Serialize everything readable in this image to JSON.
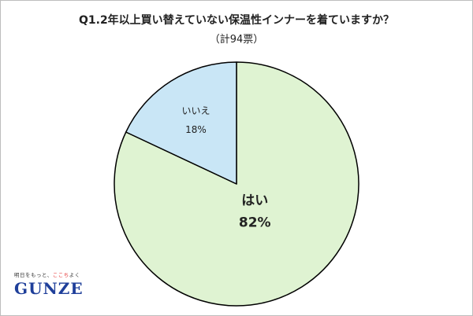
{
  "chart_data": {
    "type": "pie",
    "title": "Q1.2年以上買い替えていない保温性インナーを着ていますか？",
    "subtitle": "（計94票）",
    "slices": [
      {
        "label": "はい",
        "percent_label": "82%",
        "value": 82,
        "color": "#dff3d2"
      },
      {
        "label": "いいえ",
        "percent_label": "18%",
        "value": 18,
        "color": "#c9e6f6"
      }
    ],
    "start_angle_deg": 0,
    "direction": "clockwise",
    "outline_color": "#000000"
  },
  "logo": {
    "tagline_before": "明日をもっと、",
    "tagline_highlight": "ここち",
    "tagline_after": "よく",
    "name": "GUNZE"
  }
}
